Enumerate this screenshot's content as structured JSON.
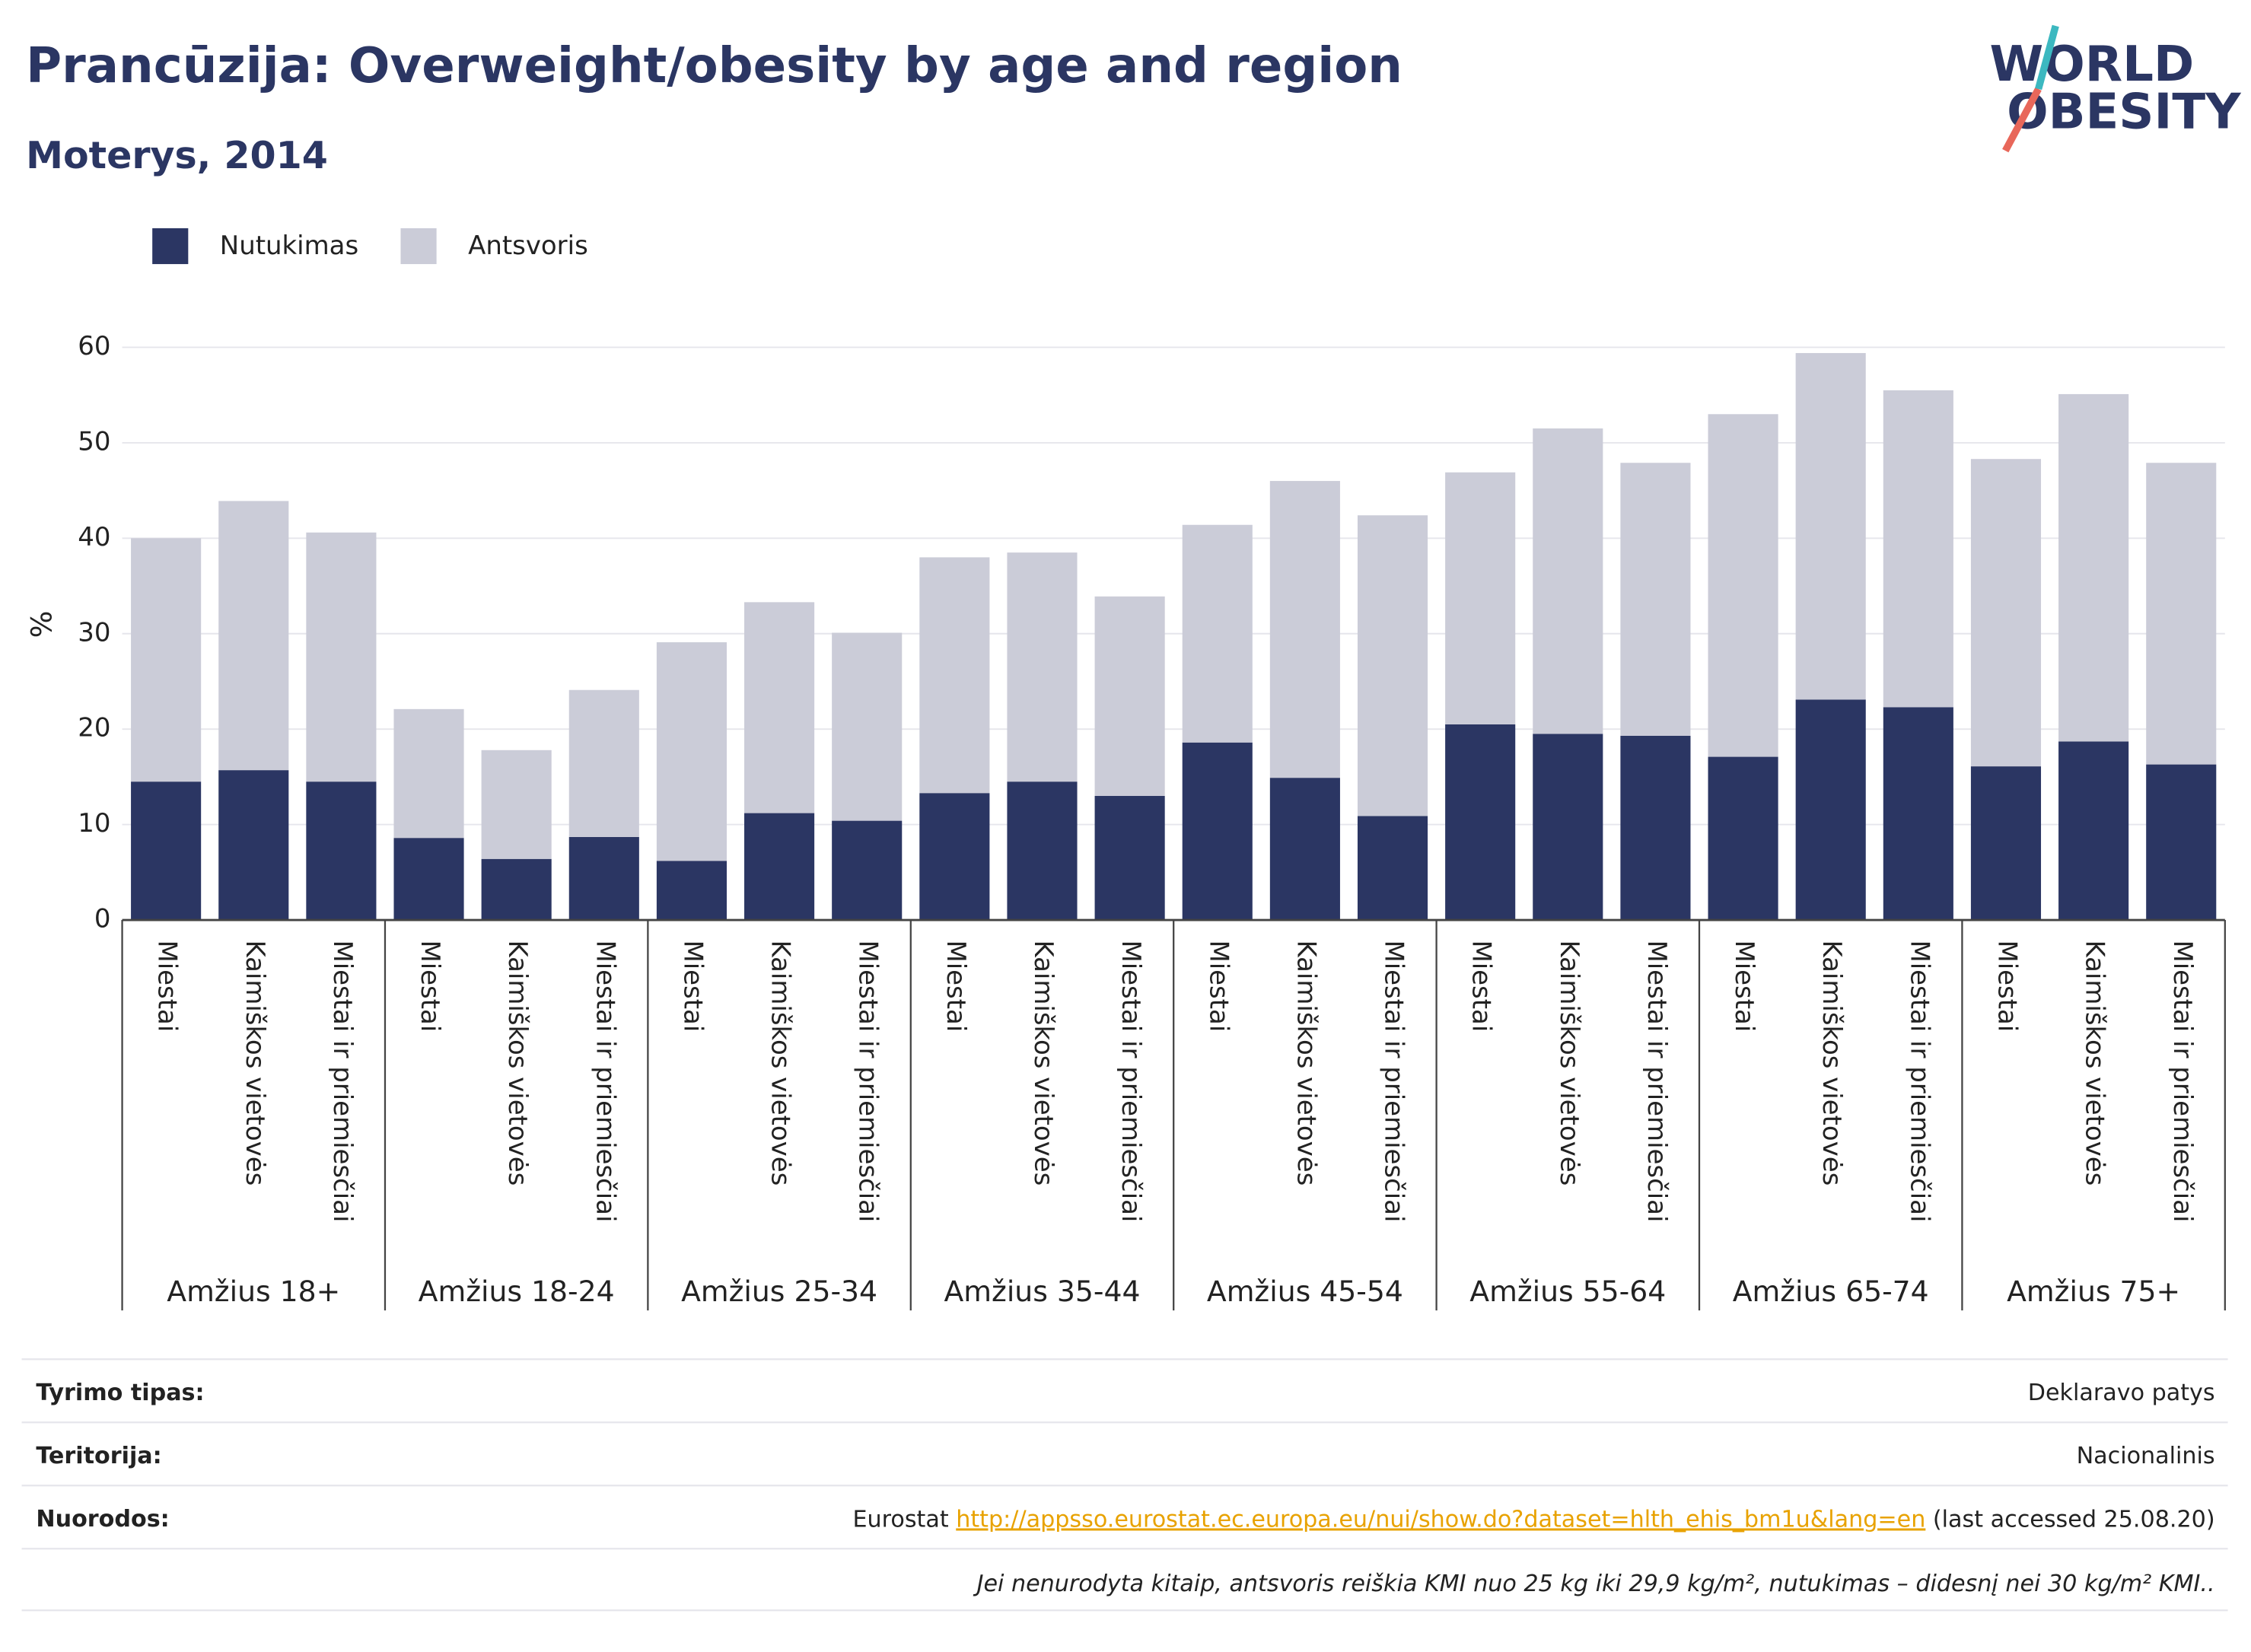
{
  "chart_data": {
    "type": "stacked-bar",
    "title": "Prancūzija: Overweight/obesity by age and region",
    "subtitle": "Moterys, 2014",
    "logo": [
      "WORLD",
      "OBESITY"
    ],
    "y_label": "%",
    "groups": [
      "Amžius 18+",
      "Amžius 18-24",
      "Amžius 25-34",
      "Amžius 35-44",
      "Amžius 45-54",
      "Amžius 55-64",
      "Amžius 65-74",
      "Amžius 75+"
    ],
    "categories": [
      "Miestai",
      "Kaimiškos vietovės",
      "Miestai ir priemiesčiai",
      "Miestai",
      "Kaimiškos vietovės",
      "Miestai ir priemiesčiai",
      "Miestai",
      "Kaimiškos vietovės",
      "Miestai ir priemiesčiai",
      "Miestai",
      "Kaimiškos vietovės",
      "Miestai ir priemiesčiai",
      "Miestai",
      "Kaimiškos vietovės",
      "Miestai ir priemiesčiai",
      "Miestai",
      "Kaimiškos vietovės",
      "Miestai ir priemiesčiai",
      "Miestai",
      "Kaimiškos vietovės",
      "Miestai ir priemiesčiai",
      "Miestai",
      "Kaimiškos vietovės",
      "Miestai ir priemiesčiai"
    ],
    "series": [
      {
        "name": "Nutukimas",
        "color": "#2b3663",
        "values": [
          14.5,
          15.7,
          14.5,
          8.6,
          6.4,
          8.7,
          6.2,
          11.2,
          10.4,
          13.3,
          14.5,
          13.0,
          18.6,
          14.9,
          10.9,
          20.5,
          19.5,
          19.3,
          17.1,
          23.1,
          22.3,
          16.1,
          18.7,
          16.3
        ]
      },
      {
        "name": "Antsvoris",
        "color": "#cbccd8",
        "values": [
          25.5,
          28.2,
          26.1,
          13.5,
          11.4,
          15.4,
          22.9,
          22.1,
          19.7,
          24.7,
          24.0,
          20.9,
          22.8,
          31.1,
          31.5,
          26.4,
          32.0,
          28.6,
          35.9,
          36.3,
          33.2,
          32.2,
          36.4,
          31.6
        ]
      }
    ],
    "ylim": [
      0,
      60
    ],
    "yticks": [
      0,
      10,
      20,
      30,
      40,
      50,
      60
    ],
    "grid": true,
    "legend": "top-left"
  },
  "footer": {
    "rows": [
      {
        "label": "Tyrimo tipas:",
        "value": "Deklaravo patys"
      },
      {
        "label": "Teritorija:",
        "value": "Nacionalinis"
      },
      {
        "label": "Nuorodos:",
        "value": [
          "Eurostat ",
          "http://appsso.eurostat.ec.europa.eu/nui/show.do?dataset=hlth_ehis_bm1u&lang=en",
          " (last accessed 25.08.20)"
        ]
      }
    ],
    "note": "Jei nenurodyta kitaip, antsvoris reiškia KMI nuo 25 kg iki 29,9 kg/m², nutukimas – didesnį nei 30 kg/m² KMI.."
  }
}
